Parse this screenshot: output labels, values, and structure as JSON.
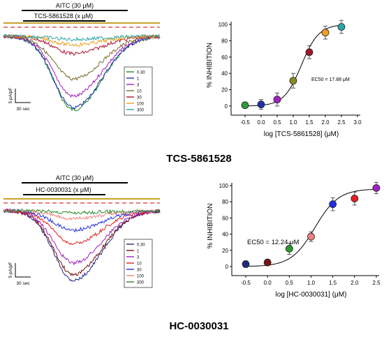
{
  "chart_data": [
    {
      "type": "line",
      "panel": "top-left traces",
      "bar_labels": [
        "AITC (30 μM)",
        "TCS-5861528  (x μM)"
      ],
      "legend_placement": "bottom-right",
      "scale_bar": {
        "y_label": "5 pA/pF",
        "x_label": "30 sec"
      },
      "x_axis": {
        "unit": "sec"
      },
      "series": [
        {
          "name": "0.30",
          "color": "#1c8a2e",
          "peak_pApF": -19.0
        },
        {
          "name": "1",
          "color": "#1f2fb0",
          "peak_pApF": -18.5
        },
        {
          "name": "3",
          "color": "#a020c0",
          "peak_pApF": -15.5
        },
        {
          "name": "10",
          "color": "#7a6a2a",
          "peak_pApF": -11.0
        },
        {
          "name": "30",
          "color": "#b01030",
          "peak_pApF": -4.5
        },
        {
          "name": "100",
          "color": "#f0a020",
          "peak_pApF": -2.2
        },
        {
          "name": "300",
          "color": "#2aa6a6",
          "peak_pApF": -0.8
        }
      ]
    },
    {
      "type": "scatter",
      "panel": "top-right",
      "ylabel": "% INHIBITION",
      "xlabel": "log [TCS-5861528]  (μM)",
      "xlim": [
        -0.5,
        3.0
      ],
      "ylim": [
        0,
        100
      ],
      "xticks": [
        "-0.5",
        "0.0",
        "0.5",
        "1.0",
        "1.5",
        "2.0",
        "2.5",
        "3.0"
      ],
      "yticks": [
        "0",
        "20",
        "40",
        "60",
        "80",
        "100"
      ],
      "annotation": "EC50 = 17.88 μM",
      "fit": {
        "ec50_log": 1.252,
        "hill": 1.6,
        "top": 100,
        "bottom": 0
      },
      "points": [
        {
          "x": -0.5,
          "y": 1,
          "err": 2,
          "color": "#2f9a3a"
        },
        {
          "x": 0.0,
          "y": 2,
          "err": 6,
          "color": "#1f2fb0"
        },
        {
          "x": 0.5,
          "y": 8,
          "err": 8,
          "color": "#a020c0"
        },
        {
          "x": 1.0,
          "y": 31,
          "err": 9,
          "color": "#8a8a20"
        },
        {
          "x": 1.5,
          "y": 66,
          "err": 8,
          "color": "#9a1a2a"
        },
        {
          "x": 2.0,
          "y": 90,
          "err": 8,
          "color": "#f0a020"
        },
        {
          "x": 2.5,
          "y": 97,
          "err": 8,
          "color": "#2aa6a6"
        }
      ]
    },
    {
      "type": "line",
      "panel": "bottom-left traces",
      "bar_labels": [
        "AITC (30 μM)",
        "HC-0030031  (x μM)"
      ],
      "legend_placement": "bottom-right",
      "scale_bar": {
        "y_label": "5 pA/pF",
        "x_label": "30 sec"
      },
      "x_axis": {
        "unit": "sec"
      },
      "series": [
        {
          "name": "0.30",
          "color": "#1f2a80",
          "peak_pApF": -18.0
        },
        {
          "name": "1",
          "color": "#7a1010",
          "peak_pApF": -16.5
        },
        {
          "name": "3",
          "color": "#a020c0",
          "peak_pApF": -13.5
        },
        {
          "name": "10",
          "color": "#e02020",
          "peak_pApF": -8.5
        },
        {
          "name": "30",
          "color": "#2030e0",
          "peak_pApF": -5.0
        },
        {
          "name": "100",
          "color": "#f08080",
          "peak_pApF": -2.0
        },
        {
          "name": "300",
          "color": "#2a8a2a",
          "peak_pApF": -0.5
        }
      ]
    },
    {
      "type": "scatter",
      "panel": "bottom-right",
      "ylabel": "% INHIBITION",
      "xlabel": "log [HC-0030031]  (μM)",
      "xlim": [
        -0.5,
        2.5
      ],
      "ylim": [
        0,
        100
      ],
      "xticks": [
        "-0.5",
        "0.0",
        "0.5",
        "1.0",
        "1.5",
        "2.0",
        "2.5"
      ],
      "yticks": [
        "0",
        "20",
        "40",
        "60",
        "80",
        "100"
      ],
      "annotation": "EC50 = 12.24 μM",
      "fit": {
        "ec50_log": 1.088,
        "hill": 1.6,
        "top": 96,
        "bottom": 0
      },
      "points": [
        {
          "x": -0.5,
          "y": 3,
          "err": 4,
          "color": "#1f2a80"
        },
        {
          "x": 0.0,
          "y": 5,
          "err": 4,
          "color": "#7a1010"
        },
        {
          "x": 0.5,
          "y": 22,
          "err": 7,
          "color": "#2a9a2a"
        },
        {
          "x": 1.0,
          "y": 37,
          "err": 6,
          "color": "#f08080"
        },
        {
          "x": 1.5,
          "y": 77,
          "err": 8,
          "color": "#2030e0"
        },
        {
          "x": 2.0,
          "y": 84,
          "err": 8,
          "color": "#e02020"
        },
        {
          "x": 2.5,
          "y": 97,
          "err": 7,
          "color": "#a020c0"
        }
      ]
    }
  ],
  "captions": {
    "top": "TCS-5861528",
    "bottom": "HC-0030031"
  }
}
